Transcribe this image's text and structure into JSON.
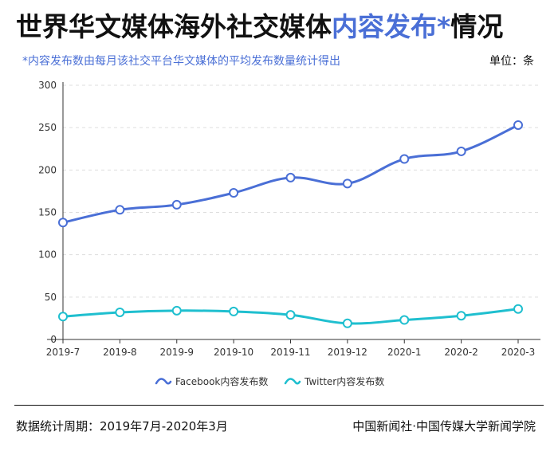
{
  "header": {
    "title_part1": "世界华文媒体海外社交媒体",
    "title_highlight": "内容发布*",
    "title_part2": "情况",
    "subtitle": "*内容发布数由每月该社交平台华文媒体的平均发布数量统计得出",
    "unit": "单位：条"
  },
  "footer": {
    "period": "数据统计周期：2019年7月-2020年3月",
    "source": "中国新闻社·中国传媒大学新闻学院"
  },
  "colors": {
    "highlight": "#4a6fd6",
    "facebook": "#4a6fd6",
    "twitter": "#1fbfcf"
  },
  "chart_data": {
    "type": "line",
    "categories": [
      "2019-7",
      "2019-8",
      "2019-9",
      "2019-10",
      "2019-11",
      "2019-12",
      "2020-1",
      "2020-2",
      "2020-3"
    ],
    "series": [
      {
        "name": "Facebook内容发布数",
        "values": [
          138,
          153,
          159,
          173,
          191,
          184,
          213,
          222,
          253
        ],
        "color": "#4a6fd6"
      },
      {
        "name": "Twitter内容发布数",
        "values": [
          27,
          32,
          34,
          33,
          29,
          19,
          23,
          28,
          36
        ],
        "color": "#1fbfcf"
      }
    ],
    "ylim": [
      0,
      300
    ],
    "yticks": [
      0,
      50,
      100,
      150,
      200,
      250,
      300
    ],
    "grid": true,
    "legend_position": "bottom-center"
  }
}
